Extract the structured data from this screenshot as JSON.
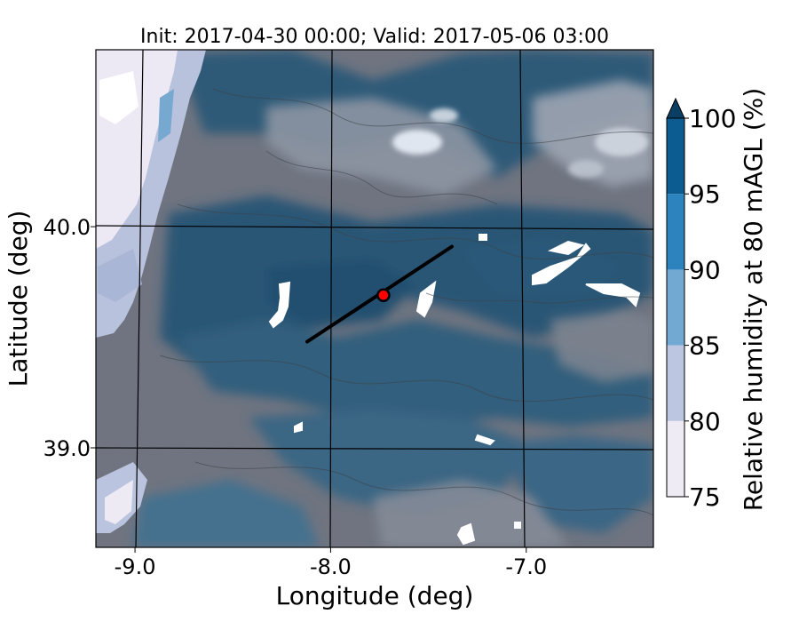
{
  "title": "Init: 2017-04-30 00:00; Valid: 2017-05-06 03:00",
  "x_axis": {
    "label": "Longitude (deg)",
    "ticks": [
      {
        "value": -9.0,
        "label": "-9.0"
      },
      {
        "value": -8.0,
        "label": "-8.0"
      },
      {
        "value": -7.0,
        "label": "-7.0"
      }
    ]
  },
  "y_axis": {
    "label": "Latitude (deg)",
    "ticks": [
      {
        "value": 40.0,
        "label": "40.0"
      },
      {
        "value": 39.0,
        "label": "39.0"
      }
    ]
  },
  "colorbar": {
    "label": "Relative humidity at 80 mAGL (%)",
    "levels": [
      {
        "value": 75,
        "label": "75"
      },
      {
        "value": 80,
        "label": "80"
      },
      {
        "value": 85,
        "label": "85"
      },
      {
        "value": 90,
        "label": "90"
      },
      {
        "value": 95,
        "label": "95"
      },
      {
        "value": 100,
        "label": "100"
      }
    ],
    "colors": [
      "#efebf5",
      "#bcc6e0",
      "#72a9d2",
      "#2c83bd",
      "#0d5c91"
    ],
    "extend_color": "#0b3e63",
    "extend": "max"
  },
  "map": {
    "lon_range": [
      -9.2,
      -6.35
    ],
    "lat_range": [
      38.55,
      40.8
    ],
    "marker": {
      "lon": -7.73,
      "lat": 39.69,
      "color": "#ff0000"
    },
    "cross_section": {
      "start": {
        "lon": -8.12,
        "lat": 39.48
      },
      "end": {
        "lon": -7.38,
        "lat": 39.91
      }
    },
    "colors": {
      "land_grey": "#70747e",
      "ocean_light": "#efebf5",
      "dark_blue": "#2b5573",
      "mid_blue": "#3a6582",
      "light_grey": "#9ea6b3"
    }
  }
}
